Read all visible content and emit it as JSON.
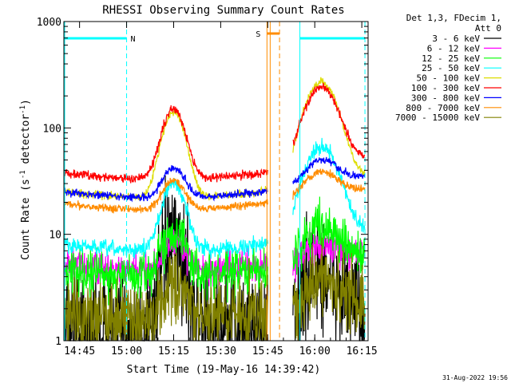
{
  "chart_data": {
    "type": "line",
    "title": "RHESSI Observing Summary Count Rates",
    "xlabel": "Start Time (19-May-16 14:39:42)",
    "ylabel_main": "Count Rate (s",
    "ylabel_sup1": "-1",
    "ylabel_mid": " detector",
    "ylabel_sup2": "-1",
    "ylabel_end": ")",
    "y_scale": "log",
    "ylim": [
      1,
      1000
    ],
    "xlim_minutes_after_1440": [
      0,
      97
    ],
    "x_ticks": [
      {
        "m": 5,
        "label": "14:45"
      },
      {
        "m": 20,
        "label": "15:00"
      },
      {
        "m": 35,
        "label": "15:15"
      },
      {
        "m": 50,
        "label": "15:30"
      },
      {
        "m": 65,
        "label": "15:45"
      },
      {
        "m": 80,
        "label": "16:00"
      },
      {
        "m": 95,
        "label": "16:15"
      }
    ],
    "y_ticks": [
      {
        "v": 1,
        "label": "1"
      },
      {
        "v": 10,
        "label": "10"
      },
      {
        "v": 100,
        "label": "100"
      },
      {
        "v": 1000,
        "label": "1000"
      }
    ],
    "legend_header": [
      "Det 1,3, FDecim 1,",
      "Att 0"
    ],
    "legend_position": "right",
    "timestamp": "31-Aug-2022 19:56",
    "night_marker": "N",
    "saa_marker": "S",
    "data_gap_minutes": [
      65,
      73
    ],
    "night_intervals": [
      [
        0,
        20
      ],
      [
        75,
        96
      ]
    ],
    "saa_interval": [
      64,
      68
    ],
    "series": [
      {
        "name": "3 - 6 keV",
        "color": "#000000",
        "base": 1.2,
        "peak1": 8,
        "peak2": 4,
        "noise": 0.9
      },
      {
        "name": "6 - 12 keV",
        "color": "#ff00ff",
        "base": 4.5,
        "peak1": 9,
        "peak2": 6,
        "noise": 0.25
      },
      {
        "name": "12 - 25 keV",
        "color": "#00ff00",
        "base": 4.0,
        "peak1": 11,
        "peak2": 11,
        "noise": 0.35
      },
      {
        "name": "25 - 50 keV",
        "color": "#00ffff",
        "base": 7.0,
        "peak1": 30,
        "peak2": 65,
        "noise": 0.12
      },
      {
        "name": "50 - 100 keV",
        "color": "#dddd00",
        "base": 22,
        "peak1": 140,
        "peak2": 260,
        "noise": 0.06
      },
      {
        "name": "100 - 300 keV",
        "color": "#ff0000",
        "base": 33,
        "peak1": 150,
        "peak2": 230,
        "noise": 0.07
      },
      {
        "name": "300 - 800 keV",
        "color": "#0000ff",
        "base": 22,
        "peak1": 42,
        "peak2": 42,
        "noise": 0.06
      },
      {
        "name": "800 - 7000 keV",
        "color": "#ff8c00",
        "base": 17,
        "peak1": 32,
        "peak2": 33,
        "noise": 0.06
      },
      {
        "name": "7000 - 15000 keV",
        "color": "#808000",
        "base": 1.6,
        "peak1": 3,
        "peak2": 3,
        "noise": 0.6
      }
    ],
    "flare_peaks_minutes": [
      35,
      82
    ]
  }
}
